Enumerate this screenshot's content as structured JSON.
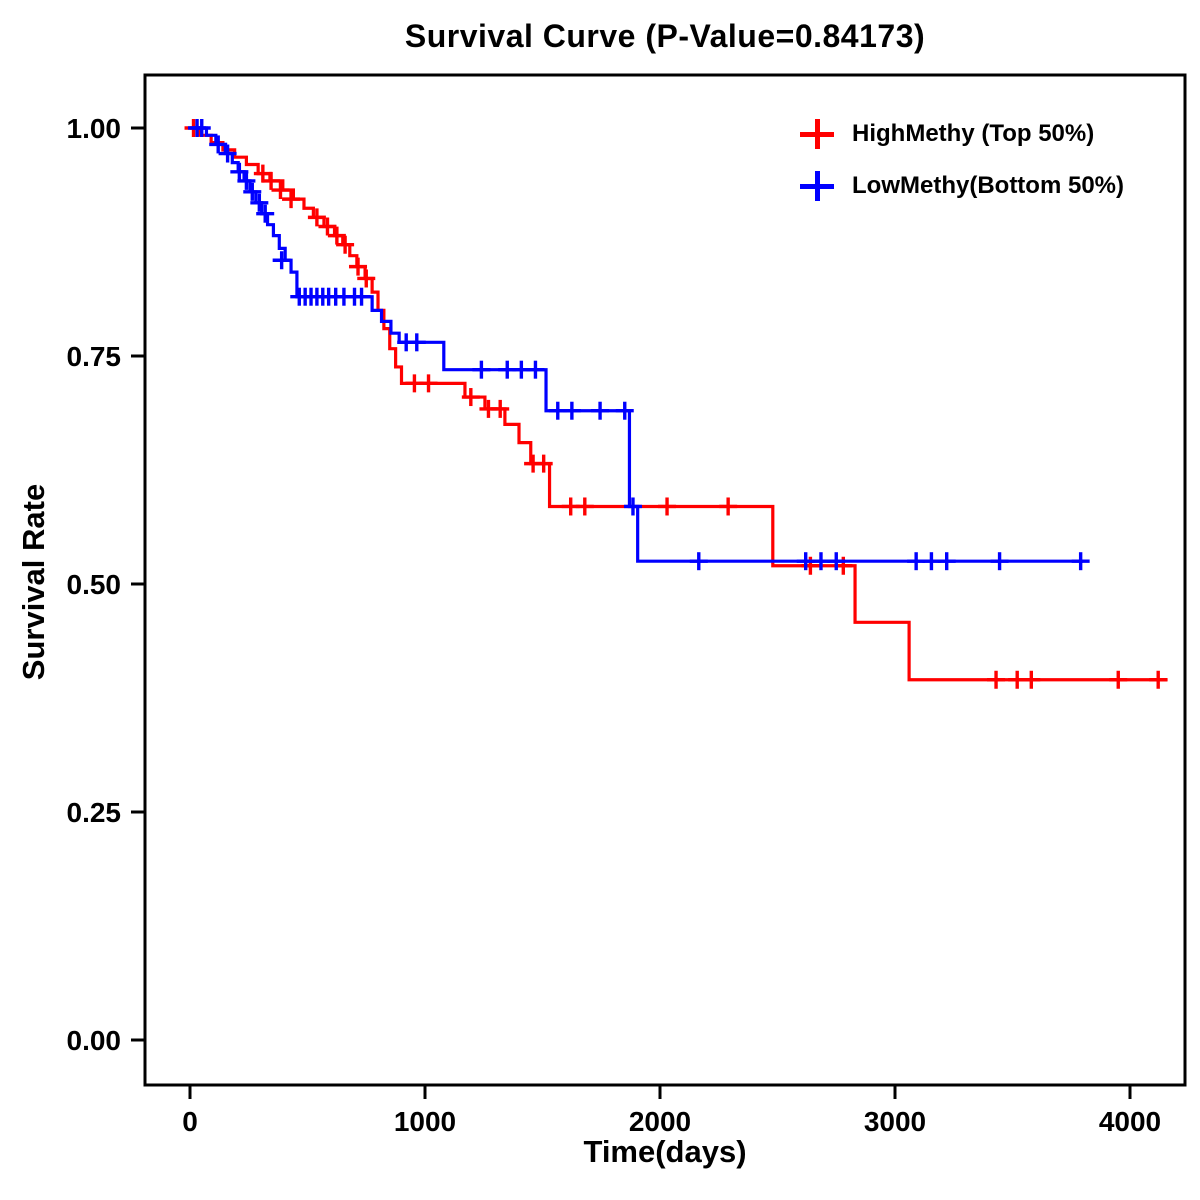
{
  "chart_data": {
    "type": "line",
    "variant": "kaplan_meier_step_survival",
    "title": "Survival Curve (P-Value=0.84173)",
    "p_value": 0.84173,
    "xlabel": "Time(days)",
    "ylabel": "Survival Rate",
    "x_range": [
      0,
      4200
    ],
    "ylim": [
      0,
      1
    ],
    "grid": false,
    "legend_position": "top-right-inside",
    "xticks": [
      {
        "v": 0,
        "label": "0"
      },
      {
        "v": 1000,
        "label": "1000"
      },
      {
        "v": 2000,
        "label": "2000"
      },
      {
        "v": 3000,
        "label": "3000"
      },
      {
        "v": 4000,
        "label": "4000"
      }
    ],
    "yticks": [
      {
        "v": 0.0,
        "label": "0.00"
      },
      {
        "v": 0.25,
        "label": "0.25"
      },
      {
        "v": 0.5,
        "label": "0.50"
      },
      {
        "v": 0.75,
        "label": "0.75"
      },
      {
        "v": 1.0,
        "label": "1.00"
      }
    ],
    "series": [
      {
        "name": "HighMethy (Top 50%)",
        "color": "#FF0000",
        "end_time": 4160,
        "steps": [
          [
            0,
            1.0
          ],
          [
            40,
            0.992
          ],
          [
            90,
            0.984
          ],
          [
            140,
            0.976
          ],
          [
            190,
            0.968
          ],
          [
            240,
            0.96
          ],
          [
            290,
            0.95
          ],
          [
            340,
            0.942
          ],
          [
            395,
            0.932
          ],
          [
            440,
            0.922
          ],
          [
            485,
            0.912
          ],
          [
            525,
            0.902
          ],
          [
            570,
            0.892
          ],
          [
            615,
            0.882
          ],
          [
            650,
            0.872
          ],
          [
            680,
            0.86
          ],
          [
            710,
            0.848
          ],
          [
            745,
            0.835
          ],
          [
            775,
            0.82
          ],
          [
            800,
            0.8
          ],
          [
            825,
            0.78
          ],
          [
            850,
            0.758
          ],
          [
            875,
            0.738
          ],
          [
            900,
            0.72
          ],
          [
            1170,
            0.705
          ],
          [
            1255,
            0.692
          ],
          [
            1340,
            0.675
          ],
          [
            1400,
            0.655
          ],
          [
            1450,
            0.632
          ],
          [
            1530,
            0.585
          ],
          [
            2480,
            0.52
          ],
          [
            2830,
            0.458
          ],
          [
            3060,
            0.395
          ]
        ],
        "censors": [
          [
            15,
            1.0
          ],
          [
            310,
            0.95
          ],
          [
            345,
            0.942
          ],
          [
            385,
            0.932
          ],
          [
            430,
            0.922
          ],
          [
            540,
            0.902
          ],
          [
            585,
            0.892
          ],
          [
            625,
            0.882
          ],
          [
            660,
            0.872
          ],
          [
            715,
            0.848
          ],
          [
            750,
            0.835
          ],
          [
            955,
            0.72
          ],
          [
            1015,
            0.72
          ],
          [
            1195,
            0.705
          ],
          [
            1270,
            0.692
          ],
          [
            1320,
            0.692
          ],
          [
            1460,
            0.632
          ],
          [
            1505,
            0.632
          ],
          [
            1620,
            0.585
          ],
          [
            1680,
            0.585
          ],
          [
            2030,
            0.585
          ],
          [
            2290,
            0.585
          ],
          [
            2640,
            0.52
          ],
          [
            2780,
            0.52
          ],
          [
            3430,
            0.395
          ],
          [
            3520,
            0.395
          ],
          [
            3580,
            0.395
          ],
          [
            3950,
            0.395
          ],
          [
            4120,
            0.395
          ]
        ]
      },
      {
        "name": "LowMethy(Bottom 50%)",
        "color": "#0000FF",
        "end_time": 3800,
        "steps": [
          [
            0,
            1.0
          ],
          [
            70,
            0.992
          ],
          [
            110,
            0.982
          ],
          [
            150,
            0.972
          ],
          [
            180,
            0.962
          ],
          [
            205,
            0.952
          ],
          [
            230,
            0.942
          ],
          [
            255,
            0.93
          ],
          [
            280,
            0.918
          ],
          [
            305,
            0.906
          ],
          [
            330,
            0.894
          ],
          [
            355,
            0.882
          ],
          [
            380,
            0.868
          ],
          [
            405,
            0.855
          ],
          [
            430,
            0.842
          ],
          [
            455,
            0.815
          ],
          [
            775,
            0.8
          ],
          [
            815,
            0.788
          ],
          [
            855,
            0.775
          ],
          [
            890,
            0.765
          ],
          [
            1080,
            0.735
          ],
          [
            1515,
            0.69
          ],
          [
            1870,
            0.585
          ],
          [
            1905,
            0.525
          ]
        ],
        "censors": [
          [
            30,
            1.0
          ],
          [
            50,
            1.0
          ],
          [
            120,
            0.982
          ],
          [
            160,
            0.972
          ],
          [
            210,
            0.952
          ],
          [
            240,
            0.942
          ],
          [
            265,
            0.93
          ],
          [
            295,
            0.918
          ],
          [
            320,
            0.906
          ],
          [
            390,
            0.855
          ],
          [
            465,
            0.815
          ],
          [
            490,
            0.815
          ],
          [
            515,
            0.815
          ],
          [
            540,
            0.815
          ],
          [
            565,
            0.815
          ],
          [
            590,
            0.815
          ],
          [
            620,
            0.815
          ],
          [
            655,
            0.815
          ],
          [
            700,
            0.815
          ],
          [
            730,
            0.815
          ],
          [
            920,
            0.765
          ],
          [
            965,
            0.765
          ],
          [
            1240,
            0.735
          ],
          [
            1350,
            0.735
          ],
          [
            1410,
            0.735
          ],
          [
            1470,
            0.735
          ],
          [
            1565,
            0.69
          ],
          [
            1625,
            0.69
          ],
          [
            1745,
            0.69
          ],
          [
            1850,
            0.69
          ],
          [
            1885,
            0.585
          ],
          [
            2165,
            0.525
          ],
          [
            2620,
            0.525
          ],
          [
            2685,
            0.525
          ],
          [
            2750,
            0.525
          ],
          [
            3090,
            0.525
          ],
          [
            3155,
            0.525
          ],
          [
            3220,
            0.525
          ],
          [
            3445,
            0.525
          ],
          [
            3790,
            0.525
          ]
        ]
      }
    ],
    "style": {
      "axis_color": "#000000",
      "background": "#FFFFFF",
      "line_width": 3.2
    }
  }
}
